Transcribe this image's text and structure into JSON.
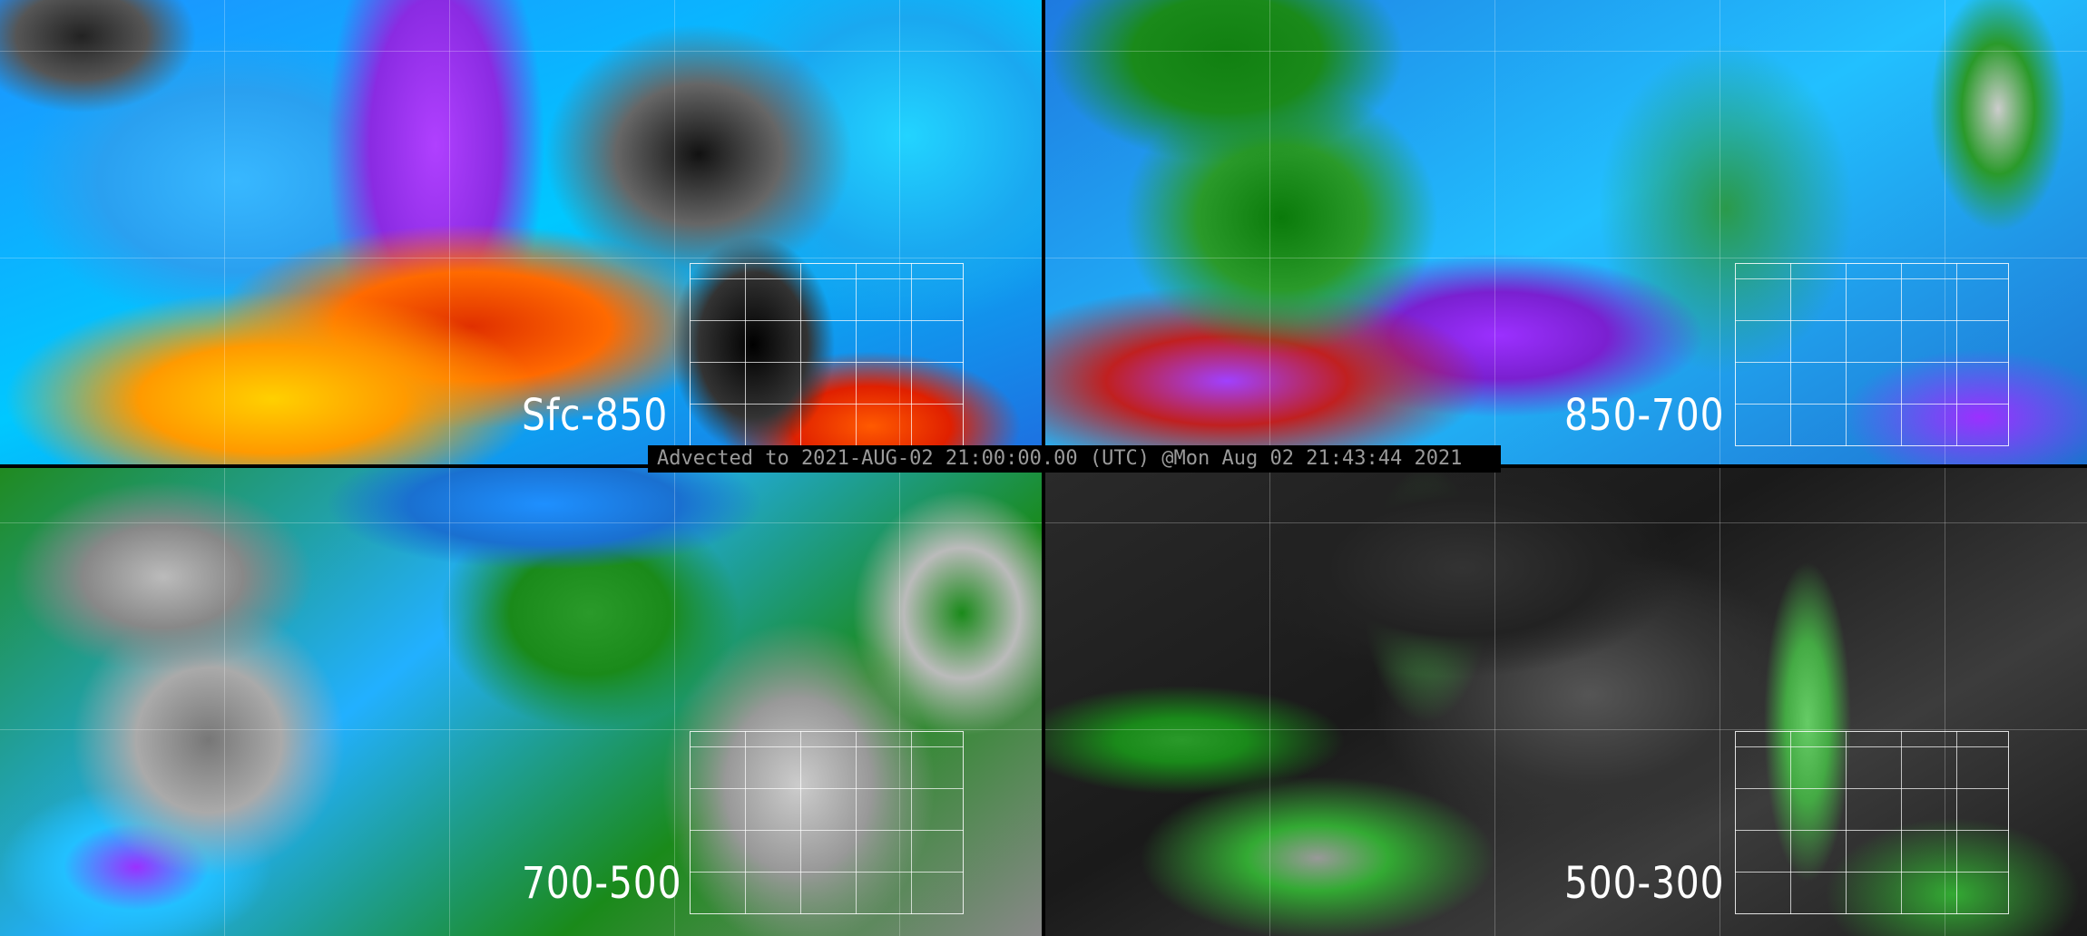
{
  "panels": [
    {
      "label": "Sfc-850"
    },
    {
      "label": "850-700"
    },
    {
      "label": "700-500"
    },
    {
      "label": "500-300"
    }
  ],
  "banner": {
    "text": "Advected to 2021-AUG-02 21:00:00.00 (UTC) @Mon Aug 02 21:43:44 2021"
  }
}
